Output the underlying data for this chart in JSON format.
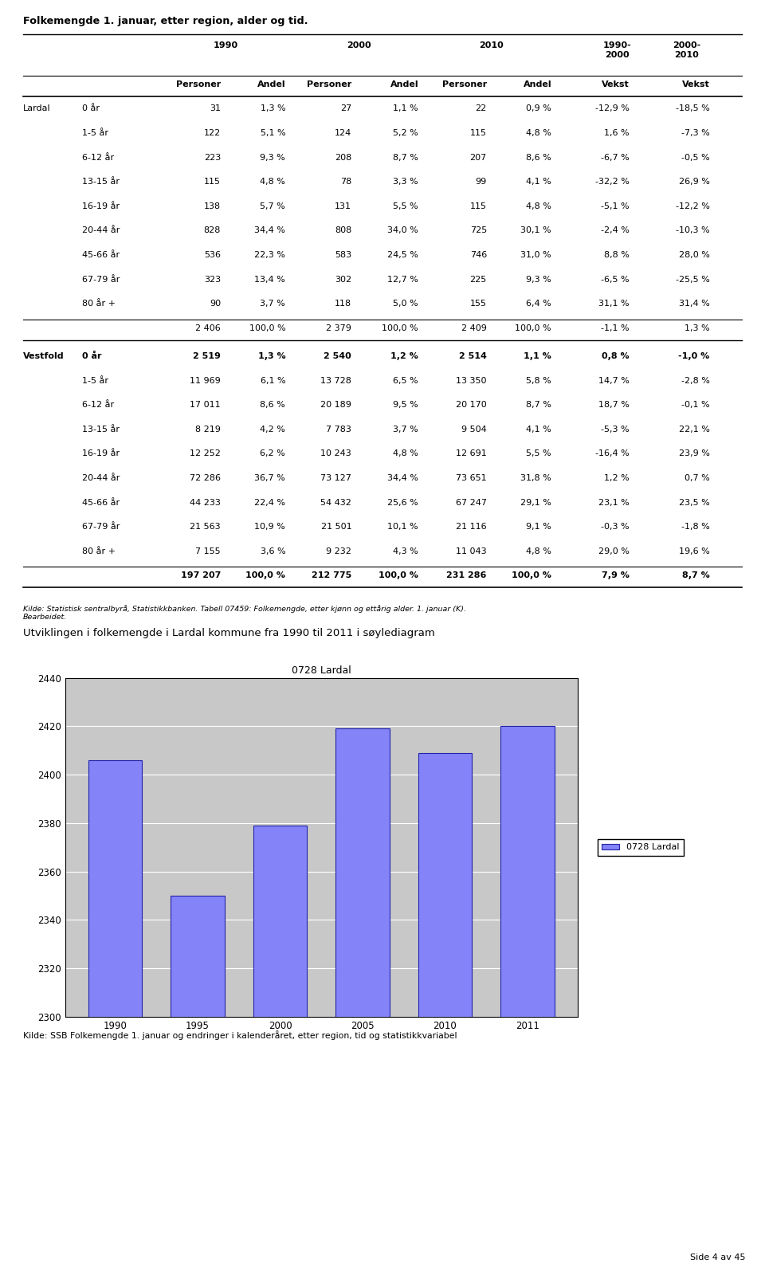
{
  "title": "Folkemengde 1. januar, etter region, alder og tid.",
  "lardal_rows": [
    [
      "Lardal",
      "0 år",
      "31",
      "1,3 %",
      "27",
      "1,1 %",
      "22",
      "0,9 %",
      "-12,9 %",
      "-18,5 %"
    ],
    [
      "",
      "1-5 år",
      "122",
      "5,1 %",
      "124",
      "5,2 %",
      "115",
      "4,8 %",
      "1,6 %",
      "-7,3 %"
    ],
    [
      "",
      "6-12 år",
      "223",
      "9,3 %",
      "208",
      "8,7 %",
      "207",
      "8,6 %",
      "-6,7 %",
      "-0,5 %"
    ],
    [
      "",
      "13-15 år",
      "115",
      "4,8 %",
      "78",
      "3,3 %",
      "99",
      "4,1 %",
      "-32,2 %",
      "26,9 %"
    ],
    [
      "",
      "16-19 år",
      "138",
      "5,7 %",
      "131",
      "5,5 %",
      "115",
      "4,8 %",
      "-5,1 %",
      "-12,2 %"
    ],
    [
      "",
      "20-44 år",
      "828",
      "34,4 %",
      "808",
      "34,0 %",
      "725",
      "30,1 %",
      "-2,4 %",
      "-10,3 %"
    ],
    [
      "",
      "45-66 år",
      "536",
      "22,3 %",
      "583",
      "24,5 %",
      "746",
      "31,0 %",
      "8,8 %",
      "28,0 %"
    ],
    [
      "",
      "67-79 år",
      "323",
      "13,4 %",
      "302",
      "12,7 %",
      "225",
      "9,3 %",
      "-6,5 %",
      "-25,5 %"
    ],
    [
      "",
      "80 år +",
      "90",
      "3,7 %",
      "118",
      "5,0 %",
      "155",
      "6,4 %",
      "31,1 %",
      "31,4 %"
    ]
  ],
  "lardal_total": [
    "",
    "",
    "2 406",
    "100,0 %",
    "2 379",
    "100,0 %",
    "2 409",
    "100,0 %",
    "-1,1 %",
    "1,3 %"
  ],
  "vestfold_rows": [
    [
      "Vestfold",
      "0 år",
      "2 519",
      "1,3 %",
      "2 540",
      "1,2 %",
      "2 514",
      "1,1 %",
      "0,8 %",
      "-1,0 %"
    ],
    [
      "",
      "1-5 år",
      "11 969",
      "6,1 %",
      "13 728",
      "6,5 %",
      "13 350",
      "5,8 %",
      "14,7 %",
      "-2,8 %"
    ],
    [
      "",
      "6-12 år",
      "17 011",
      "8,6 %",
      "20 189",
      "9,5 %",
      "20 170",
      "8,7 %",
      "18,7 %",
      "-0,1 %"
    ],
    [
      "",
      "13-15 år",
      "8 219",
      "4,2 %",
      "7 783",
      "3,7 %",
      "9 504",
      "4,1 %",
      "-5,3 %",
      "22,1 %"
    ],
    [
      "",
      "16-19 år",
      "12 252",
      "6,2 %",
      "10 243",
      "4,8 %",
      "12 691",
      "5,5 %",
      "-16,4 %",
      "23,9 %"
    ],
    [
      "",
      "20-44 år",
      "72 286",
      "36,7 %",
      "73 127",
      "34,4 %",
      "73 651",
      "31,8 %",
      "1,2 %",
      "0,7 %"
    ],
    [
      "",
      "45-66 år",
      "44 233",
      "22,4 %",
      "54 432",
      "25,6 %",
      "67 247",
      "29,1 %",
      "23,1 %",
      "23,5 %"
    ],
    [
      "",
      "67-79 år",
      "21 563",
      "10,9 %",
      "21 501",
      "10,1 %",
      "21 116",
      "9,1 %",
      "-0,3 %",
      "-1,8 %"
    ],
    [
      "",
      "80 år +",
      "7 155",
      "3,6 %",
      "9 232",
      "4,3 %",
      "11 043",
      "4,8 %",
      "29,0 %",
      "19,6 %"
    ]
  ],
  "vestfold_total": [
    "",
    "",
    "197 207",
    "100,0 %",
    "212 775",
    "100,0 %",
    "231 286",
    "100,0 %",
    "7,9 %",
    "8,7 %"
  ],
  "source_text": "Kilde: Statistisk sentralbyrå, Statistikkbanken. Tabell 07459: Folkemengde, etter kjønn og ettårig alder. 1. januar (K).\nBearbeidet.",
  "chart_title": "Utviklingen i folkemengde i Lardal kommune fra 1990 til 2011 i søylediagram",
  "bar_title": "0728 Lardal",
  "bar_years": [
    1990,
    1995,
    2000,
    2005,
    2010,
    2011
  ],
  "bar_values": [
    2406,
    2350,
    2379,
    2419,
    2409,
    2420
  ],
  "bar_color": "#8484F8",
  "bar_edge_color": "#2222AA",
  "chart_bg_color": "#C8C8C8",
  "legend_label": "0728 Lardal",
  "ylim_min": 2300,
  "ylim_max": 2440,
  "yticks": [
    2300,
    2320,
    2340,
    2360,
    2380,
    2400,
    2420,
    2440
  ],
  "chart_source": "Kilde: SSB Folkemengde 1. januar og endringer i kalenderåret, etter region, tid og statistikkvariabel",
  "page_text": "Side 4 av 45",
  "background_color": "#FFFFFF"
}
